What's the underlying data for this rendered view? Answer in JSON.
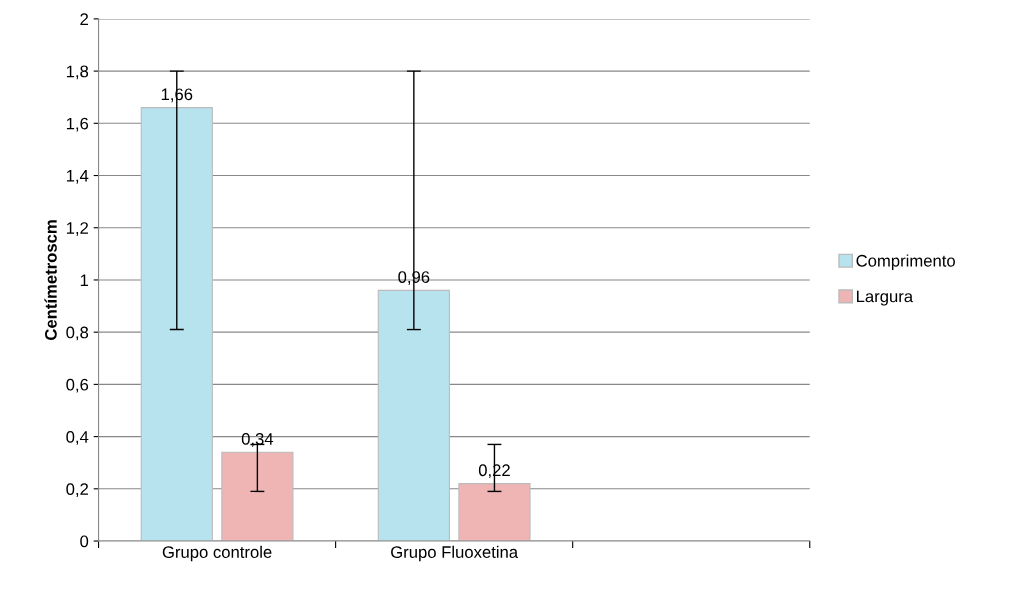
{
  "chart_data": {
    "type": "bar",
    "ylabel": "Centímetroscm",
    "categories": [
      "Grupo controle",
      "Grupo Fluoxetina",
      null
    ],
    "series": [
      {
        "name": "Comprimento",
        "color": "#b7e3ee",
        "values": [
          1.66,
          0.96,
          null
        ],
        "value_labels": [
          "1,66",
          "0,96",
          null
        ],
        "errors": [
          [
            0.81,
            1.8
          ],
          [
            0.81,
            1.8
          ],
          null
        ]
      },
      {
        "name": "Largura",
        "color": "#efb5b5",
        "values": [
          0.34,
          0.22,
          null
        ],
        "value_labels": [
          "0,34",
          "0,22",
          null
        ],
        "errors": [
          [
            0.19,
            0.37
          ],
          [
            0.19,
            0.37
          ],
          null
        ]
      }
    ],
    "ylim": [
      0,
      2
    ],
    "yticks": [
      0,
      {
        "value": 0.2,
        "label": "0,2"
      },
      {
        "value": 0.4,
        "label": "0,4"
      },
      {
        "value": 0.6,
        "label": "0,6"
      },
      {
        "value": 0.8,
        "label": "0,8"
      },
      1,
      {
        "value": 1.2,
        "label": "1,2"
      },
      {
        "value": 1.4,
        "label": "1,4"
      },
      {
        "value": 1.6,
        "label": "1,6"
      },
      {
        "value": 1.8,
        "label": "1,8"
      },
      2
    ],
    "grid": "y",
    "legend": "right"
  }
}
